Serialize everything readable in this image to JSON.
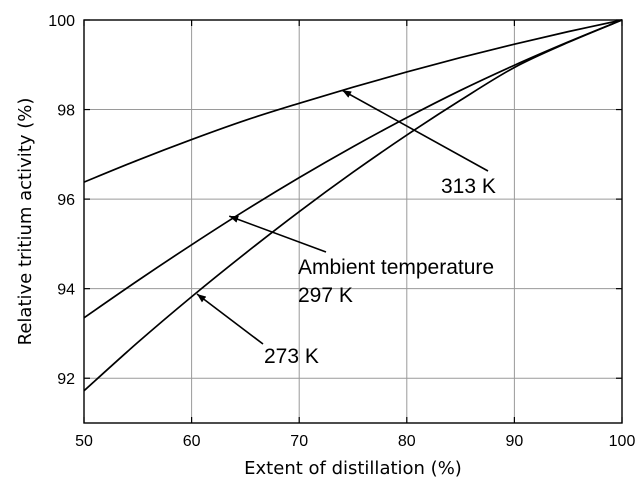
{
  "chart_data": {
    "type": "line",
    "title": "",
    "xlabel": "Extent of distillation (%)",
    "ylabel": "Relative tritium activity (%)",
    "xlim": [
      50,
      100
    ],
    "ylim": [
      91,
      100
    ],
    "x_ticks": [
      50,
      60,
      70,
      80,
      90,
      100
    ],
    "y_ticks": [
      92,
      94,
      96,
      98,
      100
    ],
    "grid": true,
    "legend": "none",
    "series": [
      {
        "x": [
          50,
          55,
          60,
          65,
          70,
          75,
          80,
          85,
          90,
          95,
          100
        ],
        "y": [
          96.38,
          96.87,
          97.33,
          97.76,
          98.14,
          98.5,
          98.84,
          99.16,
          99.46,
          99.74,
          100
        ]
      },
      {
        "x": [
          50,
          55,
          60,
          65,
          70,
          75,
          80,
          85,
          90,
          95,
          100
        ],
        "y": [
          93.35,
          94.18,
          94.98,
          95.75,
          96.48,
          97.17,
          97.82,
          98.43,
          98.99,
          99.51,
          100
        ]
      },
      {
        "x": [
          50,
          55,
          60,
          65,
          70,
          75,
          80,
          85,
          90,
          95,
          100
        ],
        "y": [
          91.72,
          92.8,
          93.82,
          94.79,
          95.72,
          96.6,
          97.43,
          98.21,
          98.94,
          99.5,
          100
        ]
      }
    ],
    "annotations": [
      {
        "lines": [
          "313 K"
        ],
        "arrow_to": [
          74,
          98.43
        ]
      },
      {
        "lines": [
          "Ambient temperature",
          "297 K"
        ],
        "arrow_to": [
          63.5,
          95.62
        ]
      },
      {
        "lines": [
          "273 K"
        ],
        "arrow_to": [
          60.5,
          93.88
        ]
      }
    ]
  }
}
